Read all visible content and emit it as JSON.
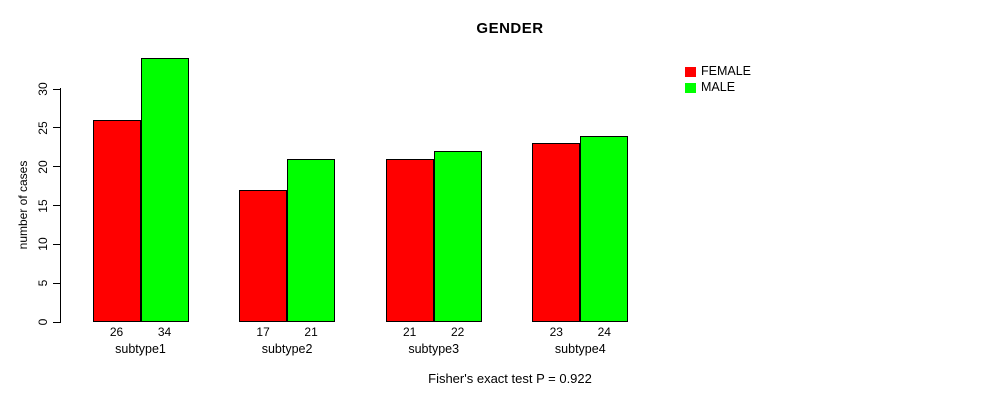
{
  "title": "GENDER",
  "ylabel": "number of cases",
  "colors": {
    "female": "#FF0000",
    "male": "#00FF00",
    "axis": "#000000",
    "text": "#000000",
    "background": "#FFFFFF"
  },
  "legend": {
    "items": [
      {
        "label": "FEMALE",
        "color": "#FF0000"
      },
      {
        "label": "MALE",
        "color": "#00FF00"
      }
    ]
  },
  "chart_data": {
    "type": "bar",
    "title": "GENDER",
    "ylabel": "number of cases",
    "xlabel": "",
    "categories": [
      "subtype1",
      "subtype2",
      "subtype3",
      "subtype4"
    ],
    "series": [
      {
        "name": "FEMALE",
        "color": "#FF0000",
        "values": [
          26,
          17,
          21,
          23
        ]
      },
      {
        "name": "MALE",
        "color": "#00FF00",
        "values": [
          34,
          21,
          22,
          24
        ]
      }
    ],
    "bar_value_labels": [
      [
        26,
        34
      ],
      [
        17,
        21
      ],
      [
        21,
        22
      ],
      [
        23,
        24
      ]
    ],
    "yticks": [
      0,
      5,
      10,
      15,
      20,
      25,
      30
    ],
    "ylim": [
      0,
      34
    ],
    "grid": false,
    "legend_position": "right-outside",
    "annotation": "Fisher's exact test P = 0.922"
  }
}
